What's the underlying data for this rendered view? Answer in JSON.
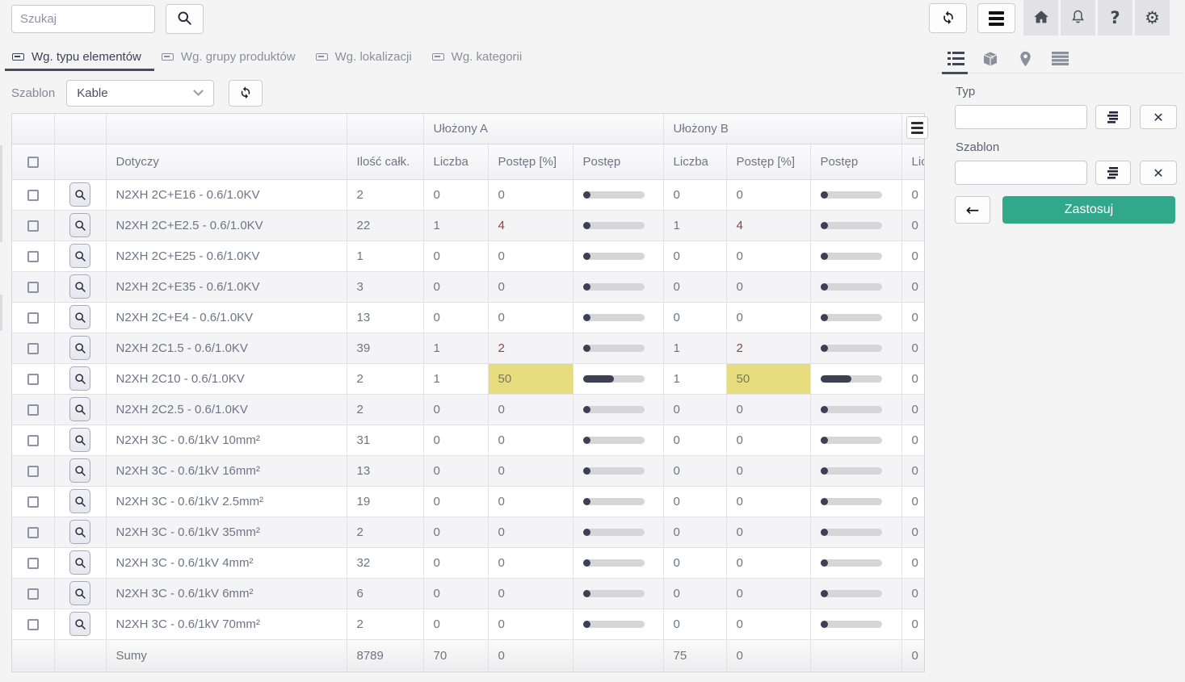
{
  "topbar": {
    "search_placeholder": "Szukaj"
  },
  "tabs": [
    {
      "label": "Wg. typu elementów",
      "active": true
    },
    {
      "label": "Wg. grupy produktów",
      "active": false
    },
    {
      "label": "Wg. lokalizacji",
      "active": false
    },
    {
      "label": "Wg. kategorii",
      "active": false
    }
  ],
  "toolbar": {
    "szablon_label": "Szablon",
    "szablon_value": "Kable"
  },
  "table": {
    "group_a": "Ułożony A",
    "group_b": "Ułożony B",
    "col_dotyczy": "Dotyczy",
    "col_total": "Ilość całk.",
    "col_count": "Liczba",
    "col_pct": "Postęp [%]",
    "col_progress": "Postęp",
    "col_cut": "Liczba",
    "rows": [
      {
        "label": "N2XH 2C+E16 - 0.6/1.0KV",
        "total": "2",
        "a_count": "0",
        "a_pct": "0",
        "a_color": "",
        "a_bar": 0,
        "b_count": "0",
        "b_pct": "0",
        "b_color": "",
        "b_bar": 0,
        "extra": "0"
      },
      {
        "label": "N2XH 2C+E2.5 - 0.6/1.0KV",
        "total": "22",
        "a_count": "1",
        "a_pct": "4",
        "a_color": "red",
        "a_bar": 4,
        "b_count": "1",
        "b_pct": "4",
        "b_color": "red",
        "b_bar": 4,
        "extra": "0"
      },
      {
        "label": "N2XH 2C+E25 - 0.6/1.0KV",
        "total": "1",
        "a_count": "0",
        "a_pct": "0",
        "a_color": "",
        "a_bar": 0,
        "b_count": "0",
        "b_pct": "0",
        "b_color": "",
        "b_bar": 0,
        "extra": "0"
      },
      {
        "label": "N2XH 2C+E35 - 0.6/1.0KV",
        "total": "3",
        "a_count": "0",
        "a_pct": "0",
        "a_color": "",
        "a_bar": 0,
        "b_count": "0",
        "b_pct": "0",
        "b_color": "",
        "b_bar": 0,
        "extra": "0"
      },
      {
        "label": "N2XH 2C+E4 - 0.6/1.0KV",
        "total": "13",
        "a_count": "0",
        "a_pct": "0",
        "a_color": "",
        "a_bar": 0,
        "b_count": "0",
        "b_pct": "0",
        "b_color": "",
        "b_bar": 0,
        "extra": "0"
      },
      {
        "label": "N2XH 2C1.5 - 0.6/1.0KV",
        "total": "39",
        "a_count": "1",
        "a_pct": "2",
        "a_color": "red",
        "a_bar": 2,
        "b_count": "1",
        "b_pct": "2",
        "b_color": "red",
        "b_bar": 2,
        "extra": "0"
      },
      {
        "label": "N2XH 2C10 - 0.6/1.0KV",
        "total": "2",
        "a_count": "1",
        "a_pct": "50",
        "a_color": "yellow",
        "a_bar": 50,
        "b_count": "1",
        "b_pct": "50",
        "b_color": "yellow",
        "b_bar": 50,
        "extra": "0"
      },
      {
        "label": "N2XH 2C2.5 - 0.6/1.0KV",
        "total": "2",
        "a_count": "0",
        "a_pct": "0",
        "a_color": "",
        "a_bar": 0,
        "b_count": "0",
        "b_pct": "0",
        "b_color": "",
        "b_bar": 0,
        "extra": "0"
      },
      {
        "label": "N2XH 3C - 0.6/1kV 10mm²",
        "total": "31",
        "a_count": "0",
        "a_pct": "0",
        "a_color": "",
        "a_bar": 0,
        "b_count": "0",
        "b_pct": "0",
        "b_color": "",
        "b_bar": 0,
        "extra": "0"
      },
      {
        "label": "N2XH 3C - 0.6/1kV 16mm²",
        "total": "13",
        "a_count": "0",
        "a_pct": "0",
        "a_color": "",
        "a_bar": 0,
        "b_count": "0",
        "b_pct": "0",
        "b_color": "",
        "b_bar": 0,
        "extra": "0"
      },
      {
        "label": "N2XH 3C - 0.6/1kV 2.5mm²",
        "total": "19",
        "a_count": "0",
        "a_pct": "0",
        "a_color": "",
        "a_bar": 0,
        "b_count": "0",
        "b_pct": "0",
        "b_color": "",
        "b_bar": 0,
        "extra": "0"
      },
      {
        "label": "N2XH 3C - 0.6/1kV 35mm²",
        "total": "2",
        "a_count": "0",
        "a_pct": "0",
        "a_color": "",
        "a_bar": 0,
        "b_count": "0",
        "b_pct": "0",
        "b_color": "",
        "b_bar": 0,
        "extra": "0"
      },
      {
        "label": "N2XH 3C - 0.6/1kV 4mm²",
        "total": "32",
        "a_count": "0",
        "a_pct": "0",
        "a_color": "",
        "a_bar": 0,
        "b_count": "0",
        "b_pct": "0",
        "b_color": "",
        "b_bar": 0,
        "extra": "0"
      },
      {
        "label": "N2XH 3C - 0.6/1kV 6mm²",
        "total": "6",
        "a_count": "0",
        "a_pct": "0",
        "a_color": "",
        "a_bar": 0,
        "b_count": "0",
        "b_pct": "0",
        "b_color": "",
        "b_bar": 0,
        "extra": "0"
      },
      {
        "label": "N2XH 3C - 0.6/1kV 70mm²",
        "total": "2",
        "a_count": "0",
        "a_pct": "0",
        "a_color": "",
        "a_bar": 0,
        "b_count": "0",
        "b_pct": "0",
        "b_color": "",
        "b_bar": 0,
        "extra": "0"
      }
    ],
    "footer": {
      "label": "Sumy",
      "total": "8789",
      "a_count": "70",
      "a_pct": "0",
      "b_count": "75",
      "b_pct": "0",
      "extra": "0"
    }
  },
  "sidebar": {
    "typ_label": "Typ",
    "szablon_label": "Szablon",
    "apply_label": "Zastosuj"
  },
  "icons": {
    "search": "magnifier",
    "refresh": "circular-arrows",
    "menu": "hamburger",
    "home": "house",
    "notifications": "bell",
    "help": "question-mark",
    "settings": "gear",
    "tab_bullet": "tag-card",
    "panel_list": "list-bullets",
    "panel_products": "package-box",
    "panel_location": "map-pin",
    "panel_table": "table-rows",
    "pick_value": "stacked-list",
    "clear_value": "x-mark",
    "back": "left-arrow",
    "row_zoom": "magnifier",
    "table_menu": "hamburger",
    "select_chevron": "chevron-down"
  },
  "colors": {
    "accent_green": "#31a88b",
    "cell_red": "#f56a54",
    "cell_yellow": "#e7dd7e",
    "progress_fill": "#3b4055",
    "active_tab": "#464b63"
  }
}
